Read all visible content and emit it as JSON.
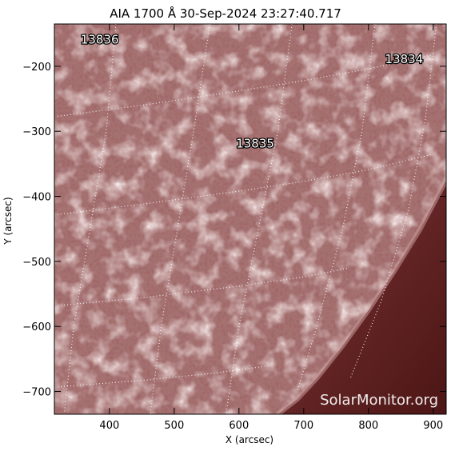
{
  "title": "AIA 1700 Å 30-Sep-2024 23:27:40.717",
  "watermark": "SolarMonitor.org",
  "colors": {
    "disk": "#a06868",
    "disk_light": "#d6a8a8",
    "limb": "#6e2a2a",
    "off_disk": "#5a1c1c",
    "grid": "#ffffff"
  },
  "xaxis": {
    "label": "X (arcsec)",
    "range": [
      315,
      920
    ],
    "ticks": [
      400,
      500,
      600,
      700,
      800,
      900
    ],
    "tick_labels": [
      "400",
      "500",
      "600",
      "700",
      "800",
      "900"
    ]
  },
  "yaxis": {
    "label": "Y (arcsec)",
    "range": [
      -735,
      -135
    ],
    "ticks": [
      -200,
      -300,
      -400,
      -500,
      -600,
      -700
    ],
    "tick_labels": [
      "−200",
      "−300",
      "−400",
      "−500",
      "−600",
      "−700"
    ]
  },
  "active_regions": [
    {
      "label": "13836",
      "x": 385,
      "y": -165
    },
    {
      "label": "13834",
      "x": 855,
      "y": -195
    },
    {
      "label": "13835",
      "x": 625,
      "y": -325
    }
  ],
  "grid_lines": {
    "latitude": [
      [
        [
          320,
          -277
        ],
        [
          450,
          -260
        ],
        [
          600,
          -238
        ],
        [
          700,
          -222
        ],
        [
          800,
          -204
        ],
        [
          900,
          -182
        ]
      ],
      [
        [
          320,
          -428
        ],
        [
          450,
          -412
        ],
        [
          600,
          -392
        ],
        [
          700,
          -377
        ],
        [
          800,
          -359
        ],
        [
          900,
          -335
        ]
      ],
      [
        [
          320,
          -568
        ],
        [
          450,
          -556
        ],
        [
          600,
          -538
        ],
        [
          700,
          -524
        ],
        [
          770,
          -510
        ]
      ],
      [
        [
          320,
          -693
        ],
        [
          450,
          -683
        ],
        [
          560,
          -672
        ],
        [
          650,
          -660
        ]
      ]
    ],
    "longitude": [
      [
        [
          410,
          -135
        ],
        [
          395,
          -300
        ],
        [
          370,
          -450
        ],
        [
          345,
          -600
        ],
        [
          330,
          -735
        ]
      ],
      [
        [
          555,
          -135
        ],
        [
          530,
          -300
        ],
        [
          505,
          -450
        ],
        [
          480,
          -600
        ],
        [
          463,
          -735
        ]
      ],
      [
        [
          682,
          -135
        ],
        [
          660,
          -300
        ],
        [
          630,
          -450
        ],
        [
          600,
          -600
        ],
        [
          580,
          -735
        ]
      ],
      [
        [
          810,
          -135
        ],
        [
          790,
          -300
        ],
        [
          760,
          -450
        ],
        [
          720,
          -600
        ],
        [
          690,
          -700
        ]
      ],
      [
        [
          905,
          -135
        ],
        [
          888,
          -280
        ],
        [
          862,
          -420
        ],
        [
          820,
          -560
        ],
        [
          772,
          -680
        ]
      ]
    ]
  },
  "limb": [
    [
      920,
      -375
    ],
    [
      880,
      -450
    ],
    [
      840,
      -515
    ],
    [
      800,
      -575
    ],
    [
      760,
      -630
    ],
    [
      720,
      -680
    ],
    [
      690,
      -712
    ],
    [
      660,
      -735
    ]
  ]
}
